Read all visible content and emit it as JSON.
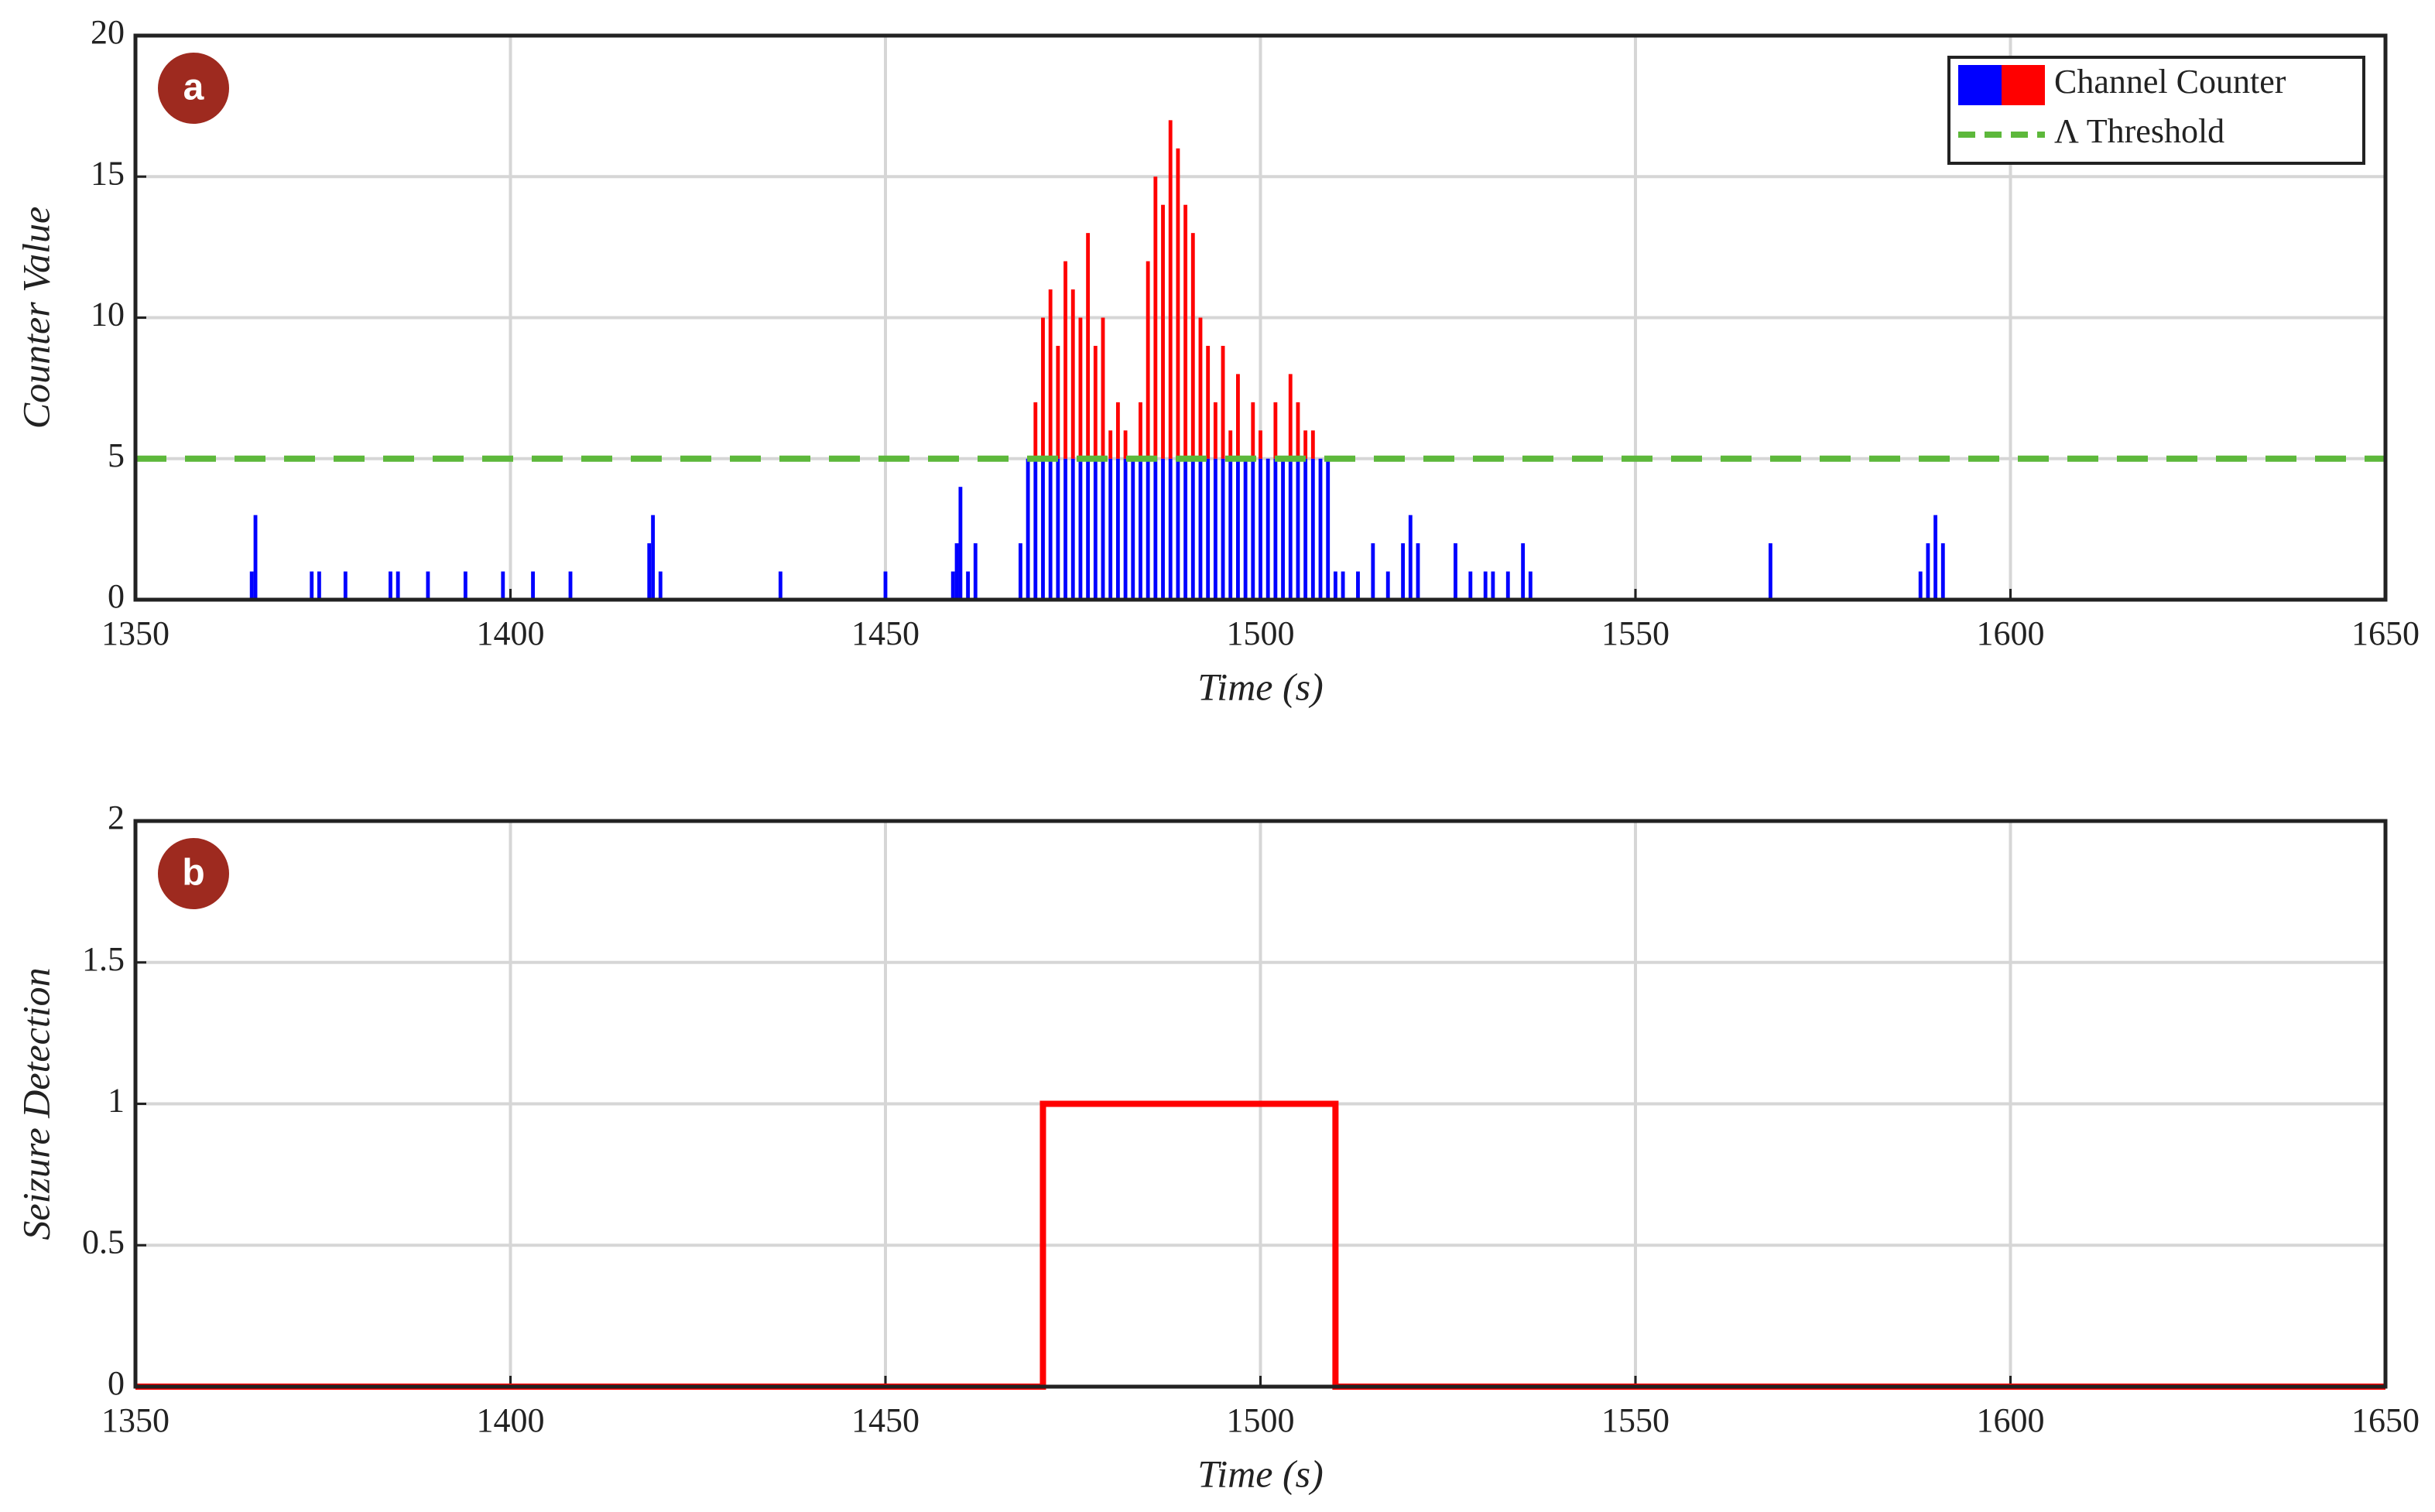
{
  "chart_data": [
    {
      "type": "bar",
      "annotation": "a",
      "xlabel": "Time (s)",
      "ylabel": "Counter Value",
      "x": [
        1365.5,
        1366,
        1373.5,
        1374.5,
        1378,
        1384,
        1385,
        1389,
        1394,
        1399,
        1403,
        1408,
        1418.5,
        1419,
        1420,
        1436,
        1450,
        1459,
        1459.5,
        1460,
        1461,
        1462,
        1468,
        1469,
        1470,
        1471,
        1472,
        1473,
        1474,
        1475,
        1476,
        1477,
        1478,
        1479,
        1480,
        1481,
        1482,
        1483,
        1484,
        1485,
        1486,
        1487,
        1488,
        1489,
        1490,
        1491,
        1492,
        1493,
        1494,
        1495,
        1496,
        1497,
        1498,
        1499,
        1500,
        1501,
        1502,
        1503,
        1504,
        1505,
        1506,
        1507,
        1508,
        1509,
        1510,
        1511,
        1513,
        1515,
        1517,
        1519,
        1520,
        1521,
        1526,
        1528,
        1530,
        1531,
        1533,
        1535,
        1536,
        1568,
        1588,
        1589,
        1590,
        1591
      ],
      "series": [
        {
          "name": "Channel Counter",
          "colors": [
            "#0000ff",
            "#ff0000"
          ],
          "values": [
            1,
            3,
            1,
            1,
            1,
            1,
            1,
            1,
            1,
            1,
            1,
            1,
            2,
            3,
            1,
            1,
            1,
            1,
            2,
            4,
            1,
            2,
            2,
            5,
            7,
            10,
            11,
            9,
            12,
            11,
            10,
            13,
            9,
            10,
            6,
            7,
            6,
            5,
            7,
            12,
            15,
            14,
            17,
            16,
            14,
            13,
            10,
            9,
            7,
            9,
            6,
            8,
            5,
            7,
            6,
            5,
            7,
            5,
            8,
            7,
            6,
            6,
            5,
            5,
            1,
            1,
            1,
            2,
            1,
            2,
            3,
            2,
            2,
            1,
            1,
            1,
            1,
            2,
            1,
            2,
            1,
            2,
            3,
            2
          ]
        }
      ],
      "threshold": {
        "name": "Λ Threshold",
        "value": 5,
        "color": "#5db83b"
      },
      "xlim": [
        1350,
        1650
      ],
      "xticks": [
        1350,
        1400,
        1450,
        1500,
        1550,
        1600,
        1650
      ],
      "ylim": [
        0,
        20
      ],
      "yticks": [
        0,
        5,
        10,
        15,
        20
      ],
      "grid": true,
      "legend": "upper right"
    },
    {
      "type": "line",
      "annotation": "b",
      "xlabel": "Time (s)",
      "ylabel": "Seizure Detection",
      "x": [
        1350,
        1471,
        1471,
        1510,
        1510,
        1650
      ],
      "series": [
        {
          "color": "#ff0000",
          "values": [
            0,
            0,
            1,
            1,
            0,
            0
          ]
        }
      ],
      "xlim": [
        1350,
        1650
      ],
      "xticks": [
        1350,
        1400,
        1450,
        1500,
        1550,
        1600,
        1650
      ],
      "ylim": [
        0,
        2
      ],
      "yticks": [
        0,
        0.5,
        1,
        1.5,
        2
      ],
      "grid": true
    }
  ]
}
